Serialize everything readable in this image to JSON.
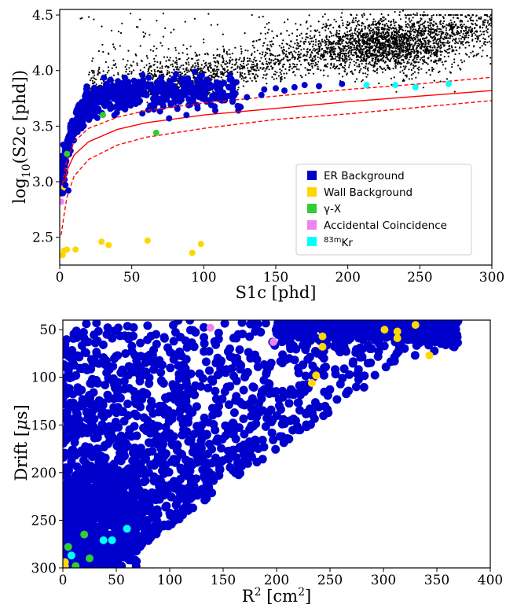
{
  "chart_data": [
    {
      "type": "scatter",
      "xlabel": "S1c [phd]",
      "ylabel_parts": {
        "pre": "log",
        "sub": "10",
        "post": "(S2c [phd])"
      },
      "xlim": [
        0,
        300
      ],
      "ylim": [
        2.25,
        4.55
      ],
      "xticks": [
        0,
        50,
        100,
        150,
        200,
        250,
        300
      ],
      "yticks": [
        2.5,
        3.0,
        3.5,
        4.0,
        4.5
      ],
      "legend_position": "lower-right",
      "legend": [
        {
          "label": "ER Background",
          "color": "#0000cd"
        },
        {
          "label": "Wall Background",
          "color": "#ffd700"
        },
        {
          "label": "γ-X",
          "color": "#32cd32"
        },
        {
          "label": "Accidental Coincidence",
          "color": "#ee82ee"
        },
        {
          "label_sup": "83m",
          "label": "Kr",
          "color": "#00ffff"
        }
      ],
      "bands": [
        {
          "name": "median",
          "style": "solid",
          "color": "#ff0000",
          "points": [
            [
              3,
              2.96
            ],
            [
              5,
              3.1
            ],
            [
              10,
              3.24
            ],
            [
              20,
              3.36
            ],
            [
              40,
              3.47
            ],
            [
              60,
              3.53
            ],
            [
              100,
              3.6
            ],
            [
              150,
              3.66
            ],
            [
              200,
              3.72
            ],
            [
              250,
              3.77
            ],
            [
              300,
              3.82
            ]
          ]
        },
        {
          "name": "upper",
          "style": "dashed",
          "color": "#ff0000",
          "points": [
            [
              2,
              2.98
            ],
            [
              5,
              3.2
            ],
            [
              10,
              3.36
            ],
            [
              20,
              3.48
            ],
            [
              40,
              3.58
            ],
            [
              60,
              3.64
            ],
            [
              100,
              3.71
            ],
            [
              150,
              3.77
            ],
            [
              200,
              3.83
            ],
            [
              250,
              3.88
            ],
            [
              300,
              3.94
            ]
          ]
        },
        {
          "name": "lower",
          "style": "dashed",
          "color": "#ff0000",
          "points": [
            [
              1,
              2.52
            ],
            [
              3,
              2.7
            ],
            [
              5,
              2.86
            ],
            [
              10,
              3.05
            ],
            [
              20,
              3.2
            ],
            [
              40,
              3.33
            ],
            [
              60,
              3.4
            ],
            [
              100,
              3.48
            ],
            [
              150,
              3.56
            ],
            [
              200,
              3.61
            ],
            [
              250,
              3.67
            ],
            [
              300,
              3.73
            ]
          ]
        }
      ],
      "series": [
        {
          "name": "Wall Background",
          "color": "#ffd700",
          "points": [
            [
              2,
              2.34
            ],
            [
              3,
              2.38
            ],
            [
              5,
              2.39
            ],
            [
              11,
              2.39
            ],
            [
              29,
              2.46
            ],
            [
              34,
              2.43
            ],
            [
              61,
              2.47
            ],
            [
              92,
              2.36
            ],
            [
              98,
              2.44
            ],
            [
              3,
              2.95
            ]
          ]
        },
        {
          "name": "γ-X",
          "color": "#32cd32",
          "points": [
            [
              67,
              3.44
            ],
            [
              5,
              3.25
            ],
            [
              30,
              3.6
            ]
          ]
        },
        {
          "name": "Accidental Coincidence",
          "color": "#ee82ee",
          "points": [
            [
              1,
              2.82
            ]
          ]
        },
        {
          "name": "83mKr",
          "color": "#00ffff",
          "points": [
            [
              213,
              3.87
            ],
            [
              233,
              3.87
            ],
            [
              247,
              3.85
            ],
            [
              270,
              3.88
            ]
          ]
        },
        {
          "name": "ER Background (outliers)",
          "color": "#0000cd",
          "points": [
            [
              120,
              3.72
            ],
            [
              130,
              3.76
            ],
            [
              140,
              3.78
            ],
            [
              156,
              3.82
            ],
            [
              180,
              3.86
            ],
            [
              196,
              3.88
            ],
            [
              163,
              3.85
            ],
            [
              108,
              3.64
            ],
            [
              88,
              3.6
            ],
            [
              76,
              3.57
            ],
            [
              6,
              2.92
            ],
            [
              4,
              2.97
            ],
            [
              150,
              3.84
            ],
            [
              142,
              3.83
            ],
            [
              170,
              3.87
            ]
          ]
        }
      ]
    },
    {
      "type": "scatter",
      "xlabel_parts": {
        "pre": "R",
        "sup": "2",
        "post": " [cm",
        "sup2": "2",
        "post2": "]"
      },
      "ylabel_parts": {
        "pre": "Drift [",
        "greek": "μ",
        "post": "s]"
      },
      "xlim": [
        0,
        400
      ],
      "ylim": [
        300,
        40
      ],
      "xticks": [
        0,
        50,
        100,
        150,
        200,
        250,
        300,
        350,
        400
      ],
      "yticks": [
        50,
        100,
        150,
        200,
        250,
        300
      ],
      "series": [
        {
          "name": "Wall Background",
          "color": "#ffd700",
          "points": [
            [
              243,
              57
            ],
            [
              243,
              68
            ],
            [
              237,
              98
            ],
            [
              233,
              106
            ],
            [
              301,
              50
            ],
            [
              313,
              52
            ],
            [
              313,
              59
            ],
            [
              330,
              45
            ],
            [
              343,
              77
            ],
            [
              2,
              294
            ],
            [
              2,
              298
            ]
          ]
        },
        {
          "name": "γ-X",
          "color": "#32cd32",
          "points": [
            [
              20,
              265
            ],
            [
              25,
              290
            ],
            [
              5,
              278
            ],
            [
              12,
              298
            ]
          ]
        },
        {
          "name": "Accidental Coincidence",
          "color": "#ee82ee",
          "points": [
            [
              138,
              48
            ],
            [
              197,
              63
            ]
          ]
        },
        {
          "name": "83mKr",
          "color": "#00ffff",
          "points": [
            [
              8,
              287
            ],
            [
              38,
              271
            ],
            [
              46,
              271
            ],
            [
              60,
              259
            ]
          ]
        }
      ]
    }
  ]
}
